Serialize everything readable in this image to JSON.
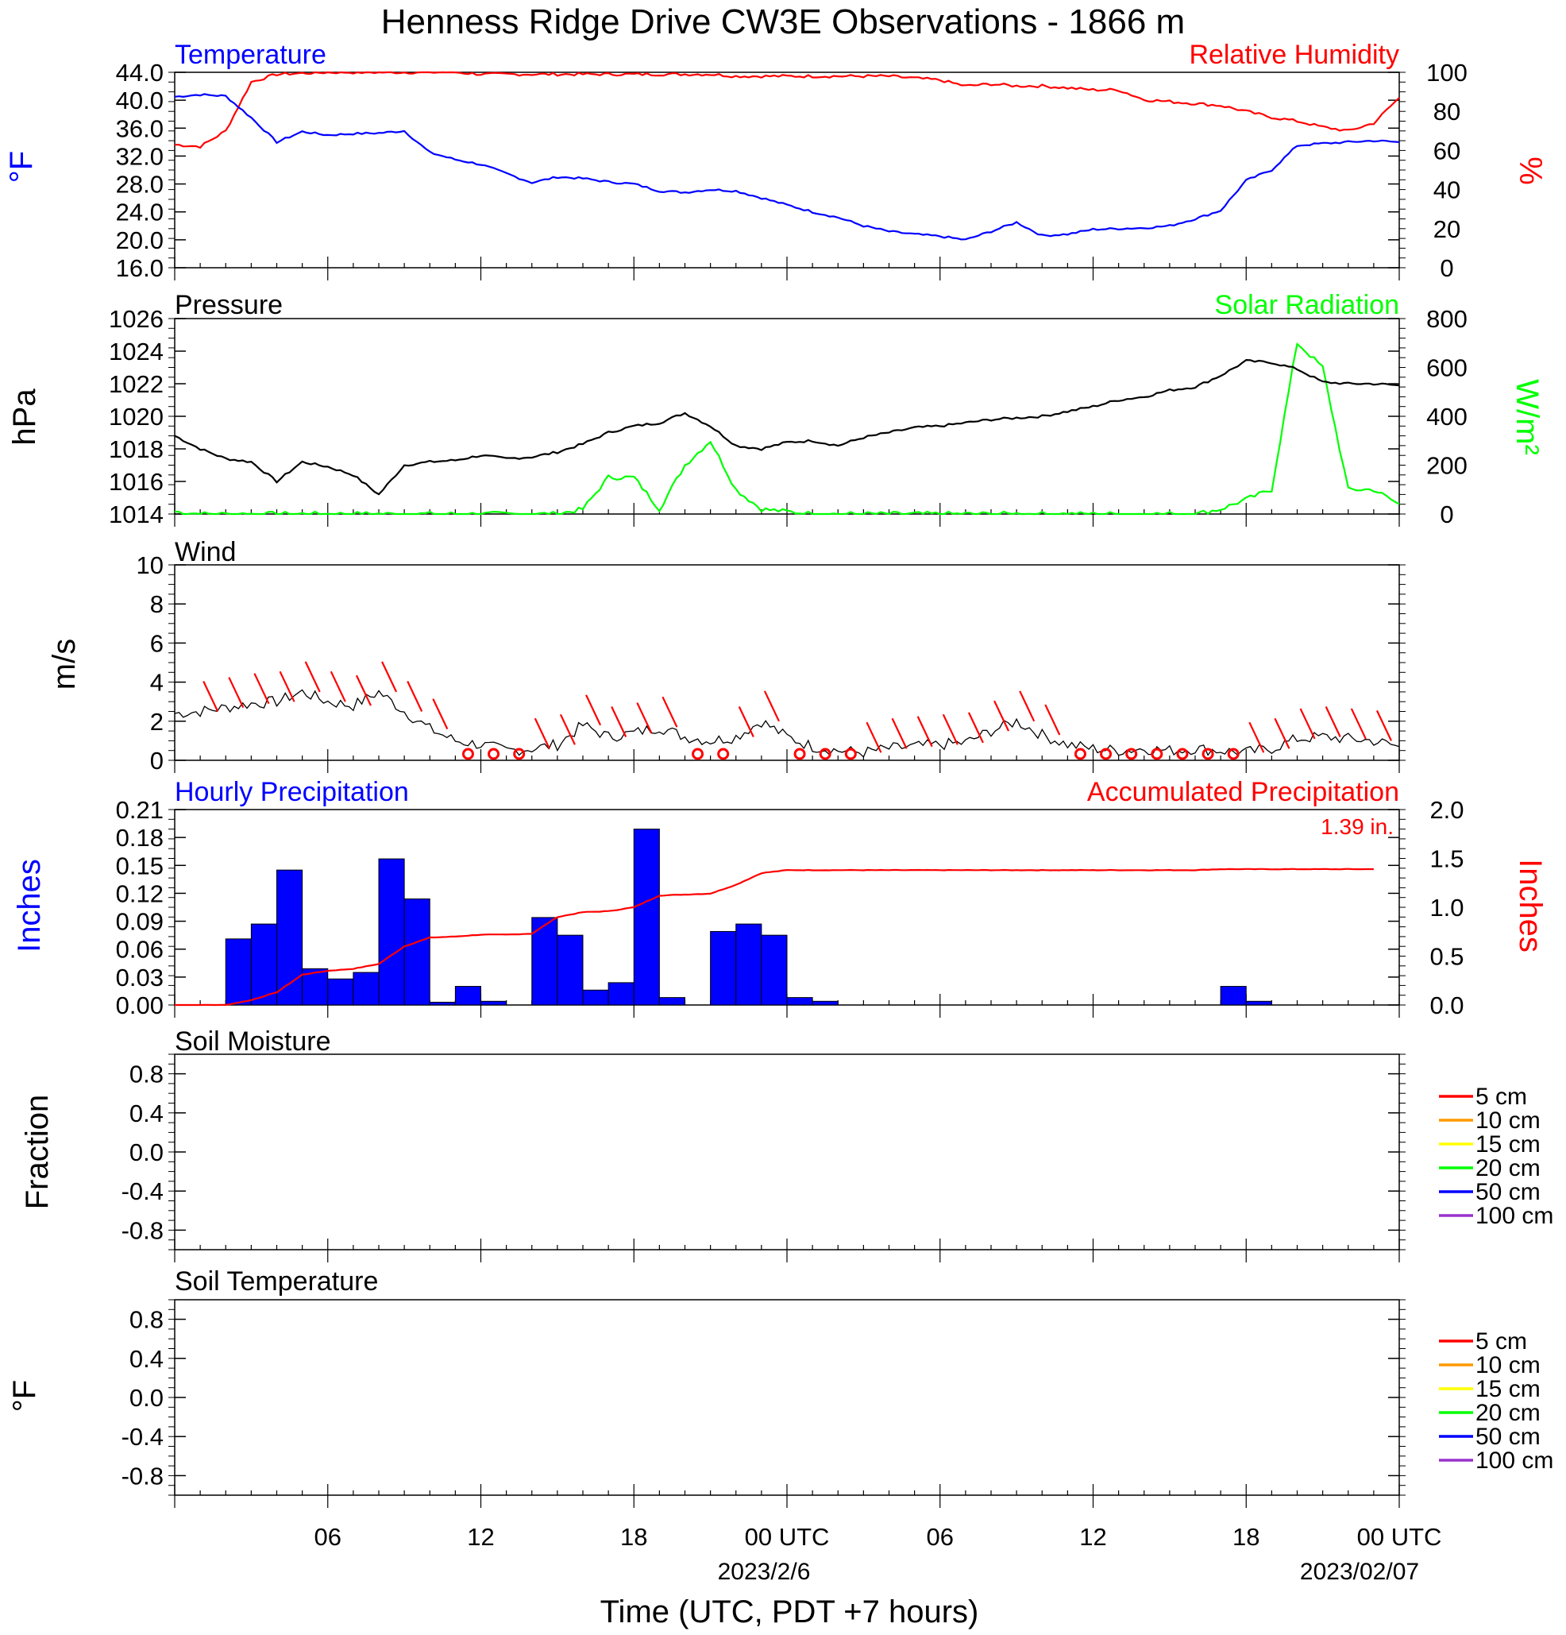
{
  "title": "Henness Ridge Drive CW3E Observations - 1866 m",
  "x_axis": {
    "tick_labels": [
      "06",
      "12",
      "18",
      "00 UTC",
      "06",
      "12",
      "18",
      "00 UTC"
    ],
    "date_labels": [
      "2023/2/6",
      "2023/02/07"
    ],
    "xlabel": "Time (UTC, PDT +7 hours)"
  },
  "colors": {
    "temperature": "#0000ff",
    "humidity": "#ff0000",
    "pressure": "#000000",
    "solar": "#00ff00",
    "wind": "#000000",
    "wind_barb": "#ff0000",
    "precip_bar": "#0000ff",
    "accum_precip": "#ff0000"
  },
  "legend_colors": {
    "5 cm": "#ff0000",
    "10 cm": "#ff9900",
    "15 cm": "#ffff00",
    "20 cm": "#00ff00",
    "50 cm": "#0000ff",
    "100 cm": "#9933cc"
  },
  "panels": {
    "temp": {
      "left_title": "Temperature",
      "right_title": "Relative Humidity",
      "left_unit": "°F",
      "right_unit": "%",
      "y_ticks": [
        "44.0",
        "40.0",
        "36.0",
        "32.0",
        "28.0",
        "24.0",
        "20.0",
        "16.0"
      ],
      "y2_ticks": [
        "100",
        "80",
        "60",
        "40",
        "20",
        "0"
      ]
    },
    "pressure": {
      "left_title": "Pressure",
      "right_title": "Solar Radiation",
      "left_unit": "hPa",
      "right_unit": "W/m²",
      "y_ticks": [
        "1026",
        "1024",
        "1022",
        "1020",
        "1018",
        "1016",
        "1014"
      ],
      "y2_ticks": [
        "800",
        "600",
        "400",
        "200",
        "0"
      ]
    },
    "wind": {
      "left_title": "Wind",
      "left_unit": "m/s",
      "y_ticks": [
        "10",
        "8",
        "6",
        "4",
        "2",
        "0"
      ]
    },
    "precip": {
      "left_title": "Hourly Precipitation",
      "right_title": "Accumulated Precipitation",
      "total_label": "1.39 in.",
      "left_unit": "Inches",
      "right_unit": "Inches",
      "y_ticks": [
        "0.21",
        "0.18",
        "0.15",
        "0.12",
        "0.09",
        "0.06",
        "0.03",
        "0.00"
      ],
      "y2_ticks": [
        "2.0",
        "1.5",
        "1.0",
        "0.5",
        "0.0"
      ]
    },
    "soil_moisture": {
      "left_title": "Soil Moisture",
      "left_unit": "Fraction",
      "y_ticks": [
        "0.8",
        "0.4",
        "0.0",
        "-0.4",
        "-0.8"
      ],
      "legend": [
        "5 cm",
        "10 cm",
        "15 cm",
        "20 cm",
        "50 cm",
        "100 cm"
      ]
    },
    "soil_temp": {
      "left_title": "Soil Temperature",
      "left_unit": "°F",
      "y_ticks": [
        "0.8",
        "0.4",
        "0.0",
        "-0.4",
        "-0.8"
      ],
      "legend": [
        "5 cm",
        "10 cm",
        "15 cm",
        "20 cm",
        "50 cm",
        "100 cm"
      ]
    }
  },
  "chart_data": [
    {
      "type": "line",
      "title": "Temperature / Relative Humidity",
      "x_hours": [
        0,
        1,
        2,
        3,
        4,
        5,
        6,
        7,
        8,
        9,
        10,
        11,
        12,
        13,
        14,
        15,
        16,
        17,
        18,
        19,
        20,
        21,
        22,
        23,
        24,
        25,
        26,
        27,
        28,
        29,
        30,
        31,
        32,
        33,
        34,
        35,
        36,
        37,
        38,
        39,
        40,
        41,
        42,
        43,
        44,
        45,
        46,
        47,
        48
      ],
      "ylim": [
        16,
        44
      ],
      "y2lim": [
        0,
        100
      ],
      "series": [
        {
          "name": "Temperature",
          "axis": "left",
          "values": [
            40.5,
            40.8,
            40.6,
            37.5,
            34.0,
            35.5,
            35.0,
            35.2,
            35.3,
            35.6,
            32.5,
            31.5,
            30.8,
            29.5,
            28.2,
            29.0,
            28.8,
            28.3,
            28.0,
            27.0,
            26.8,
            27.2,
            27.0,
            26.0,
            25.0,
            24.0,
            23.2,
            22.0,
            21.2,
            20.8,
            20.5,
            20.0,
            21.2,
            22.5,
            20.6,
            20.8,
            21.5,
            21.6,
            21.7,
            22.0,
            23.0,
            24.2,
            28.5,
            30.0,
            33.5,
            33.8,
            34.0,
            34.2,
            34.0
          ]
        },
        {
          "name": "Relative Humidity",
          "axis": "right",
          "values": [
            63,
            62,
            70,
            95,
            99,
            99.5,
            100,
            100,
            100,
            100,
            100,
            100,
            99,
            99,
            99,
            99,
            99,
            99,
            99,
            99,
            99,
            99,
            98,
            98,
            98,
            98,
            98,
            98,
            98,
            97,
            96,
            93,
            94,
            93,
            93,
            92,
            91,
            91,
            86,
            85,
            84,
            83,
            80,
            77,
            75,
            72,
            70,
            74,
            87
          ]
        }
      ]
    },
    {
      "type": "line",
      "title": "Pressure / Solar Radiation",
      "x_hours": [
        0,
        1,
        2,
        3,
        4,
        5,
        6,
        7,
        8,
        9,
        10,
        11,
        12,
        13,
        14,
        15,
        16,
        17,
        18,
        19,
        20,
        21,
        22,
        23,
        24,
        25,
        26,
        27,
        28,
        29,
        30,
        31,
        32,
        33,
        34,
        35,
        36,
        37,
        38,
        39,
        40,
        41,
        42,
        43,
        44,
        45,
        46,
        47,
        48
      ],
      "ylim": [
        1014,
        1026
      ],
      "y2lim": [
        0,
        800
      ],
      "series": [
        {
          "name": "Pressure",
          "axis": "left",
          "values": [
            1018.8,
            1018.0,
            1017.4,
            1017.2,
            1016.0,
            1017.2,
            1016.9,
            1016.4,
            1015.2,
            1017.0,
            1017.2,
            1017.3,
            1017.6,
            1017.4,
            1017.5,
            1017.8,
            1018.3,
            1019.0,
            1019.4,
            1019.6,
            1020.2,
            1019.4,
            1018.2,
            1018.0,
            1018.4,
            1018.5,
            1018.2,
            1018.7,
            1019.0,
            1019.3,
            1019.4,
            1019.6,
            1019.8,
            1019.9,
            1020.0,
            1020.3,
            1020.6,
            1021.0,
            1021.2,
            1021.6,
            1021.8,
            1022.5,
            1023.4,
            1023.3,
            1022.9,
            1022.1,
            1022.0,
            1022.0,
            1021.9
          ]
        },
        {
          "name": "Solar Radiation",
          "axis": "right",
          "values": [
            10,
            0,
            0,
            0,
            0,
            0,
            0,
            0,
            0,
            0,
            0,
            0,
            0,
            0,
            0,
            0,
            20,
            150,
            150,
            20,
            200,
            300,
            100,
            20,
            10,
            0,
            0,
            0,
            0,
            0,
            0,
            0,
            0,
            0,
            0,
            0,
            0,
            0,
            0,
            0,
            0,
            20,
            60,
            100,
            700,
            600,
            100,
            100,
            40
          ]
        }
      ]
    },
    {
      "type": "line",
      "title": "Wind",
      "x_hours": [
        0,
        1,
        2,
        3,
        4,
        5,
        6,
        7,
        8,
        9,
        10,
        11,
        12,
        13,
        14,
        15,
        16,
        17,
        18,
        19,
        20,
        21,
        22,
        23,
        24,
        25,
        26,
        27,
        28,
        29,
        30,
        31,
        32,
        33,
        34,
        35,
        36,
        37,
        38,
        39,
        40,
        41,
        42,
        43,
        44,
        45,
        46,
        47,
        48
      ],
      "ylim": [
        0,
        10
      ],
      "series": [
        {
          "name": "Wind speed",
          "values": [
            2.4,
            2.5,
            2.7,
            2.9,
            3.0,
            3.5,
            3.0,
            2.8,
            3.5,
            2.5,
            1.6,
            1.0,
            0.8,
            0.5,
            0.6,
            0.8,
            1.8,
            1.2,
            1.4,
            1.7,
            1.2,
            1.0,
            1.2,
            2.0,
            1.2,
            0.7,
            0.5,
            0.4,
            0.6,
            0.7,
            0.8,
            0.9,
            1.5,
            2.0,
            1.3,
            0.8,
            0.6,
            0.5,
            0.6,
            0.5,
            0.6,
            0.5,
            0.4,
            0.6,
            1.1,
            1.2,
            1.1,
            1.0,
            0.7
          ]
        }
      ]
    },
    {
      "type": "bar",
      "title": "Hourly Precipitation / Accumulated Precipitation",
      "x_hours": [
        0,
        1,
        2,
        3,
        4,
        5,
        6,
        7,
        8,
        9,
        10,
        11,
        12,
        13,
        14,
        15,
        16,
        17,
        18,
        19,
        20,
        21,
        22,
        23,
        24,
        25,
        26,
        27,
        28,
        29,
        30,
        31,
        32,
        33,
        34,
        35,
        36,
        37,
        38,
        39,
        40,
        41,
        42,
        43,
        44,
        45,
        46,
        47
      ],
      "ylim": [
        0,
        0.21
      ],
      "y2lim": [
        0,
        2.0
      ],
      "series": [
        {
          "name": "Hourly Precipitation",
          "axis": "left",
          "values": [
            0,
            0,
            0.071,
            0.087,
            0.145,
            0.039,
            0.028,
            0.035,
            0.157,
            0.114,
            0.003,
            0.02,
            0.004,
            0,
            0.094,
            0.075,
            0.016,
            0.024,
            0.189,
            0.008,
            0,
            0.079,
            0.087,
            0.075,
            0.008,
            0.004,
            0,
            0,
            0,
            0,
            0,
            0,
            0,
            0,
            0,
            0,
            0,
            0,
            0,
            0,
            0,
            0.02,
            0.004,
            0,
            0,
            0,
            0,
            0
          ]
        },
        {
          "name": "Accumulated Precipitation",
          "axis": "right",
          "values": [
            0,
            0,
            0,
            0.05,
            0.13,
            0.31,
            0.35,
            0.37,
            0.42,
            0.6,
            0.69,
            0.7,
            0.72,
            0.72,
            0.73,
            0.9,
            0.95,
            0.96,
            1.0,
            1.12,
            1.13,
            1.14,
            1.23,
            1.35,
            1.38,
            1.38,
            1.38,
            1.38,
            1.38,
            1.38,
            1.38,
            1.38,
            1.38,
            1.38,
            1.38,
            1.38,
            1.38,
            1.38,
            1.38,
            1.38,
            1.38,
            1.39,
            1.39,
            1.39,
            1.39,
            1.39,
            1.39,
            1.39
          ]
        }
      ]
    },
    {
      "type": "line",
      "title": "Soil Moisture",
      "ylim": [
        -1.0,
        1.0
      ],
      "series": []
    },
    {
      "type": "line",
      "title": "Soil Temperature",
      "ylim": [
        -1.0,
        1.0
      ],
      "series": []
    }
  ]
}
